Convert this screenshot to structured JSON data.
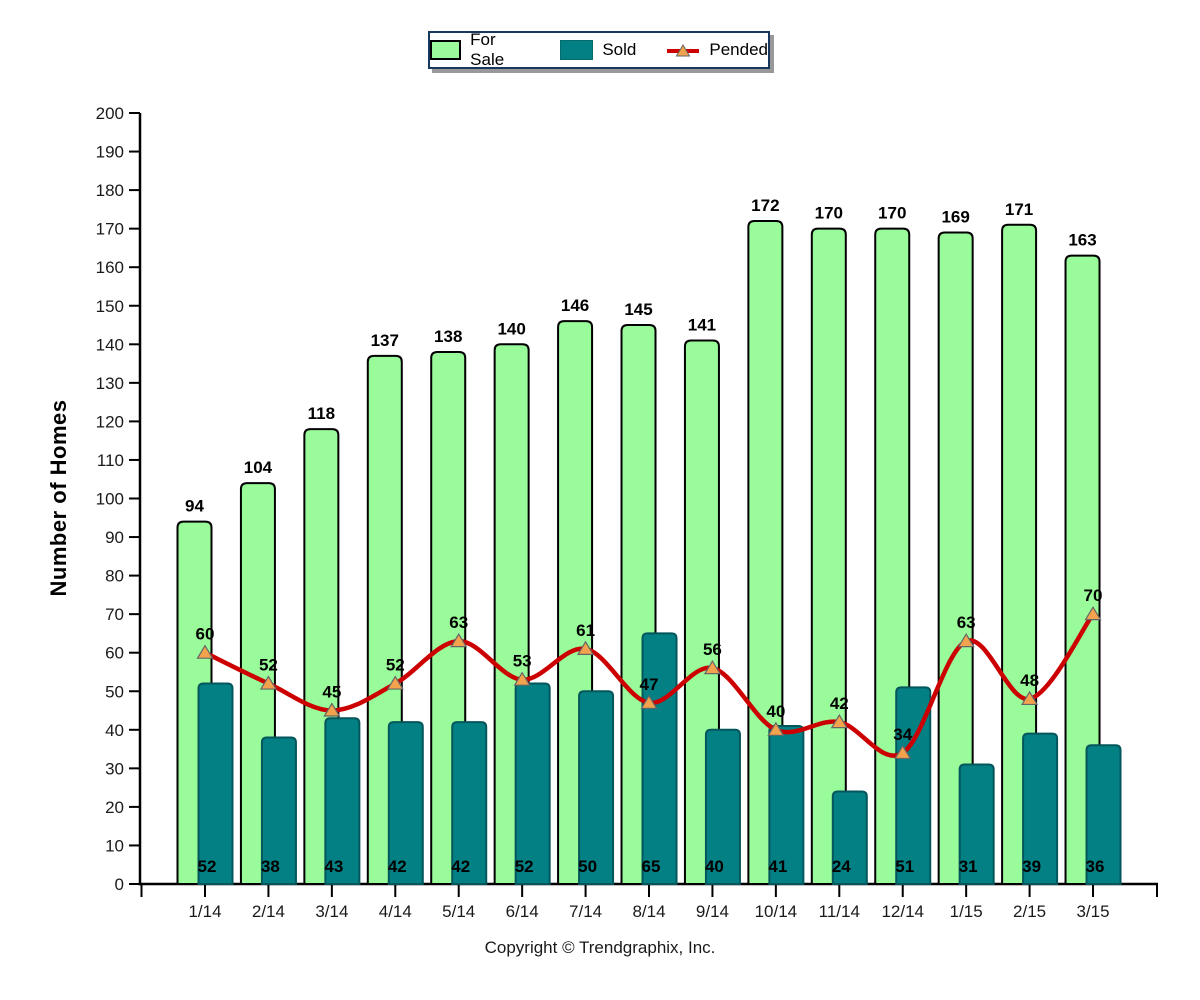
{
  "chart_data": {
    "type": "bar+line combo",
    "categories": [
      "1/14",
      "2/14",
      "3/14",
      "4/14",
      "5/14",
      "6/14",
      "7/14",
      "8/14",
      "9/14",
      "10/14",
      "11/14",
      "12/14",
      "1/15",
      "2/15",
      "3/15"
    ],
    "series": [
      {
        "name": "For Sale",
        "type": "bar",
        "color": "#99FB99",
        "border_color": "#000000",
        "values": [
          94,
          104,
          118,
          137,
          138,
          140,
          146,
          145,
          141,
          172,
          170,
          170,
          169,
          171,
          163
        ]
      },
      {
        "name": "Sold",
        "type": "bar",
        "color": "#028083",
        "border_color": "#03565C",
        "values": [
          52,
          38,
          43,
          42,
          42,
          52,
          50,
          65,
          40,
          41,
          24,
          51,
          31,
          39,
          36
        ]
      },
      {
        "name": "Pended",
        "type": "line",
        "color": "#CC0000",
        "marker": "triangle",
        "marker_color": "#F3A34E",
        "marker_border_color": "#666666",
        "values": [
          60,
          52,
          45,
          52,
          63,
          53,
          61,
          47,
          56,
          40,
          42,
          34,
          63,
          48,
          70
        ]
      }
    ],
    "xlabel": "",
    "ylabel": "Number of Homes",
    "ylim": [
      0,
      200
    ],
    "ytick_step": 10,
    "grid": false,
    "legend_position": "top-center",
    "value_labels": {
      "for_sale": "above bar top, bold",
      "sold": "inside bar bottom, bold",
      "pended": "above each triangle marker, bold"
    }
  },
  "footer": {
    "copyright": "Copyright © Trendgraphix, Inc."
  }
}
